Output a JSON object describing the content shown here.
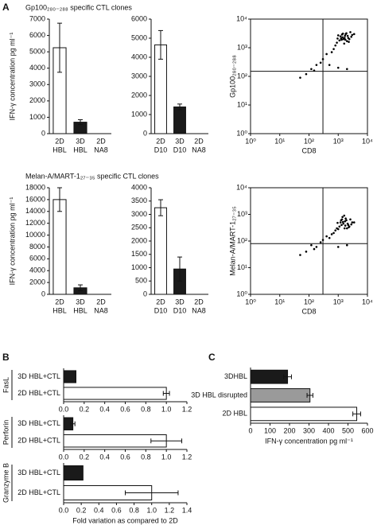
{
  "figure_labels": [
    "A",
    "B",
    "C"
  ],
  "chart_data": [
    {
      "type": "bar",
      "panel_title": "Gp100₂₈₀₋₂₈₈ specific CTL clones",
      "ylabel": "IFN-γ concentration pg ml⁻¹",
      "categories": [
        [
          "2D",
          "HBL"
        ],
        [
          "3D",
          "HBL"
        ],
        [
          "2D",
          "NA8"
        ]
      ],
      "values": [
        5250,
        700,
        null
      ],
      "errors": [
        1500,
        150,
        null
      ],
      "colors": [
        "#ffffff",
        "#1a1a1a",
        "#ffffff"
      ],
      "ylim": [
        0,
        7000
      ],
      "yticks": [
        0,
        1000,
        2000,
        3000,
        4000,
        5000,
        6000,
        7000
      ]
    },
    {
      "type": "bar",
      "categories": [
        [
          "2D",
          "D10"
        ],
        [
          "3D",
          "D10"
        ],
        [
          "2D",
          "NA8"
        ]
      ],
      "values": [
        4650,
        1400,
        null
      ],
      "errors": [
        750,
        150,
        null
      ],
      "colors": [
        "#ffffff",
        "#1a1a1a",
        "#ffffff"
      ],
      "ylim": [
        0,
        6000
      ],
      "yticks": [
        0,
        1000,
        2000,
        3000,
        4000,
        5000,
        6000
      ]
    },
    {
      "type": "scatter",
      "xlabel": "CD8",
      "ylabel": "Gp100₂₈₀₋₂₈₈",
      "log": true,
      "color": "#000000",
      "xlim": [
        1,
        10000
      ],
      "ylim": [
        1,
        10000
      ],
      "xticks": [
        {
          "value": 1,
          "label": "10⁰"
        },
        {
          "value": 10,
          "label": "10¹"
        },
        {
          "value": 100,
          "label": "10²"
        },
        {
          "value": 1000,
          "label": "10³"
        },
        {
          "value": 10000,
          "label": "10⁴"
        }
      ],
      "yticks": [
        {
          "value": 1,
          "label": "10⁰"
        },
        {
          "value": 10,
          "label": "10¹"
        },
        {
          "value": 100,
          "label": "10²"
        },
        {
          "value": 1000,
          "label": "10³"
        },
        {
          "value": 10000,
          "label": "10⁴"
        }
      ],
      "quadrant_x": 300,
      "quadrant_y": 150,
      "x": [
        1200,
        1800,
        2200,
        900,
        1500,
        2600,
        1100,
        1700,
        2000,
        1400,
        3000,
        800,
        1900,
        1300,
        2400,
        1600,
        1000,
        2100,
        700,
        2800,
        1250,
        1750,
        1450,
        2300,
        950,
        600,
        400,
        250,
        180,
        120,
        80,
        50,
        300,
        500,
        150,
        1000,
        2000,
        3500,
        1650,
        1350
      ],
      "y": [
        2500,
        3000,
        2200,
        1500,
        2000,
        3500,
        1800,
        2600,
        1700,
        2300,
        2800,
        1200,
        3200,
        1900,
        2000,
        1400,
        2700,
        2600,
        900,
        2400,
        2100,
        1900,
        3100,
        1600,
        2100,
        700,
        600,
        300,
        250,
        180,
        120,
        90,
        400,
        250,
        160,
        200,
        180,
        3000,
        2200,
        2900
      ]
    },
    {
      "type": "bar",
      "panel_title": "Melan-A/MART-1₂₇₋₃₅ specific CTL clones",
      "ylabel": "IFN-γ concentration pg ml⁻¹",
      "categories": [
        [
          "2D",
          "HBL"
        ],
        [
          "3D",
          "HBL"
        ],
        [
          "2D",
          "NA8"
        ]
      ],
      "values": [
        16000,
        1100,
        null
      ],
      "errors": [
        2000,
        500,
        null
      ],
      "colors": [
        "#ffffff",
        "#1a1a1a",
        "#ffffff"
      ],
      "ylim": [
        0,
        18000
      ],
      "yticks": [
        0,
        2000,
        4000,
        6000,
        8000,
        10000,
        12000,
        14000,
        16000,
        18000
      ]
    },
    {
      "type": "bar",
      "categories": [
        [
          "2D",
          "D10"
        ],
        [
          "3D",
          "D10"
        ],
        [
          "2D",
          "NA8"
        ]
      ],
      "values": [
        3250,
        950,
        null
      ],
      "errors": [
        300,
        450,
        null
      ],
      "colors": [
        "#ffffff",
        "#1a1a1a",
        "#ffffff"
      ],
      "ylim": [
        0,
        4000
      ],
      "yticks": [
        0,
        500,
        1000,
        1500,
        2000,
        2500,
        3000,
        3500,
        4000
      ]
    },
    {
      "type": "scatter",
      "xlabel": "CD8",
      "ylabel": "Melan-A/MART-1₂₇₋₃₅",
      "log": true,
      "color": "#000000",
      "xlim": [
        1,
        10000
      ],
      "ylim": [
        1,
        10000
      ],
      "xticks": [
        {
          "value": 1,
          "label": "10⁰"
        },
        {
          "value": 10,
          "label": "10¹"
        },
        {
          "value": 100,
          "label": "10²"
        },
        {
          "value": 1000,
          "label": "10³"
        },
        {
          "value": 10000,
          "label": "10⁴"
        }
      ],
      "yticks": [
        {
          "value": 1,
          "label": "10⁰"
        },
        {
          "value": 10,
          "label": "10¹"
        },
        {
          "value": 100,
          "label": "10²"
        },
        {
          "value": 1000,
          "label": "10³"
        },
        {
          "value": 10000,
          "label": "10⁴"
        }
      ],
      "quadrant_x": 300,
      "quadrant_y": 80,
      "x": [
        1200,
        1800,
        2200,
        900,
        1500,
        2600,
        1100,
        1700,
        2000,
        1400,
        3000,
        800,
        1900,
        1300,
        2400,
        1600,
        1000,
        2100,
        700,
        2800,
        1250,
        1750,
        1450,
        2300,
        950,
        600,
        400,
        250,
        180,
        120,
        80,
        50,
        300,
        500,
        150,
        1000,
        2000,
        3500,
        1650,
        1350
      ],
      "y": [
        500,
        700,
        400,
        300,
        450,
        650,
        350,
        550,
        300,
        800,
        500,
        250,
        600,
        400,
        350,
        900,
        280,
        450,
        200,
        420,
        600,
        380,
        520,
        330,
        480,
        180,
        150,
        90,
        60,
        70,
        40,
        30,
        110,
        130,
        50,
        60,
        70,
        500,
        300,
        650
      ]
    },
    {
      "type": "bar",
      "orientation": "horizontal",
      "group_label": "FasL",
      "categories": [
        "3D HBL+CTL",
        "2D HBL+CTL"
      ],
      "values": [
        0.12,
        1.0
      ],
      "errors": [
        null,
        0.03
      ],
      "colors": [
        "#1a1a1a",
        "#ffffff"
      ],
      "xlim": [
        0,
        1.2
      ],
      "xticks": [
        {
          "value": 0,
          "label": "0.0"
        },
        {
          "value": 0.2,
          "label": "0.2"
        },
        {
          "value": 0.4,
          "label": "0.4"
        },
        {
          "value": 0.6,
          "label": "0.6"
        },
        {
          "value": 0.8,
          "label": "0.8"
        },
        {
          "value": 1,
          "label": "1.0"
        },
        {
          "value": 1.2,
          "label": "1.2"
        }
      ]
    },
    {
      "type": "bar",
      "orientation": "horizontal",
      "group_label": "Perforin",
      "categories": [
        "3D HBL+CTL",
        "2D HBL+CTL"
      ],
      "values": [
        0.09,
        1.0
      ],
      "errors": [
        0.02,
        0.15
      ],
      "colors": [
        "#1a1a1a",
        "#ffffff"
      ],
      "xlim": [
        0,
        1.2
      ],
      "xticks": [
        {
          "value": 0,
          "label": "0.0"
        },
        {
          "value": 0.2,
          "label": "0.2"
        },
        {
          "value": 0.4,
          "label": "0.4"
        },
        {
          "value": 0.6,
          "label": "0.6"
        },
        {
          "value": 0.8,
          "label": "0.8"
        },
        {
          "value": 1,
          "label": "1.0"
        },
        {
          "value": 1.2,
          "label": "1.2"
        }
      ]
    },
    {
      "type": "bar",
      "orientation": "horizontal",
      "group_label": "Granzyme B",
      "xlabel": "Fold variation as compared to 2D",
      "categories": [
        "3D HBL+CTL",
        "2D HBL+CTL"
      ],
      "values": [
        0.22,
        1.0
      ],
      "errors": [
        null,
        0.3
      ],
      "colors": [
        "#1a1a1a",
        "#ffffff"
      ],
      "xlim": [
        0,
        1.4
      ],
      "xticks": [
        {
          "value": 0,
          "label": "0.0"
        },
        {
          "value": 0.2,
          "label": "0.2"
        },
        {
          "value": 0.4,
          "label": "0.4"
        },
        {
          "value": 0.6,
          "label": "0.6"
        },
        {
          "value": 0.8,
          "label": "0.8"
        },
        {
          "value": 1,
          "label": "1.0"
        },
        {
          "value": 1.2,
          "label": "1.2"
        },
        {
          "value": 1.4,
          "label": "1.4"
        }
      ]
    },
    {
      "type": "bar",
      "orientation": "horizontal",
      "xlabel": "IFN-γ concentration pg ml⁻¹",
      "categories": [
        "3DHBL",
        "3D HBL disrupted",
        "2D HBL"
      ],
      "values": [
        190,
        305,
        545
      ],
      "errors": [
        20,
        15,
        20
      ],
      "colors": [
        "#1a1a1a",
        "#9a9a9a",
        "#ffffff"
      ],
      "xlim": [
        0,
        600
      ],
      "xticks": [
        0,
        100,
        200,
        300,
        400,
        500,
        600
      ]
    }
  ]
}
